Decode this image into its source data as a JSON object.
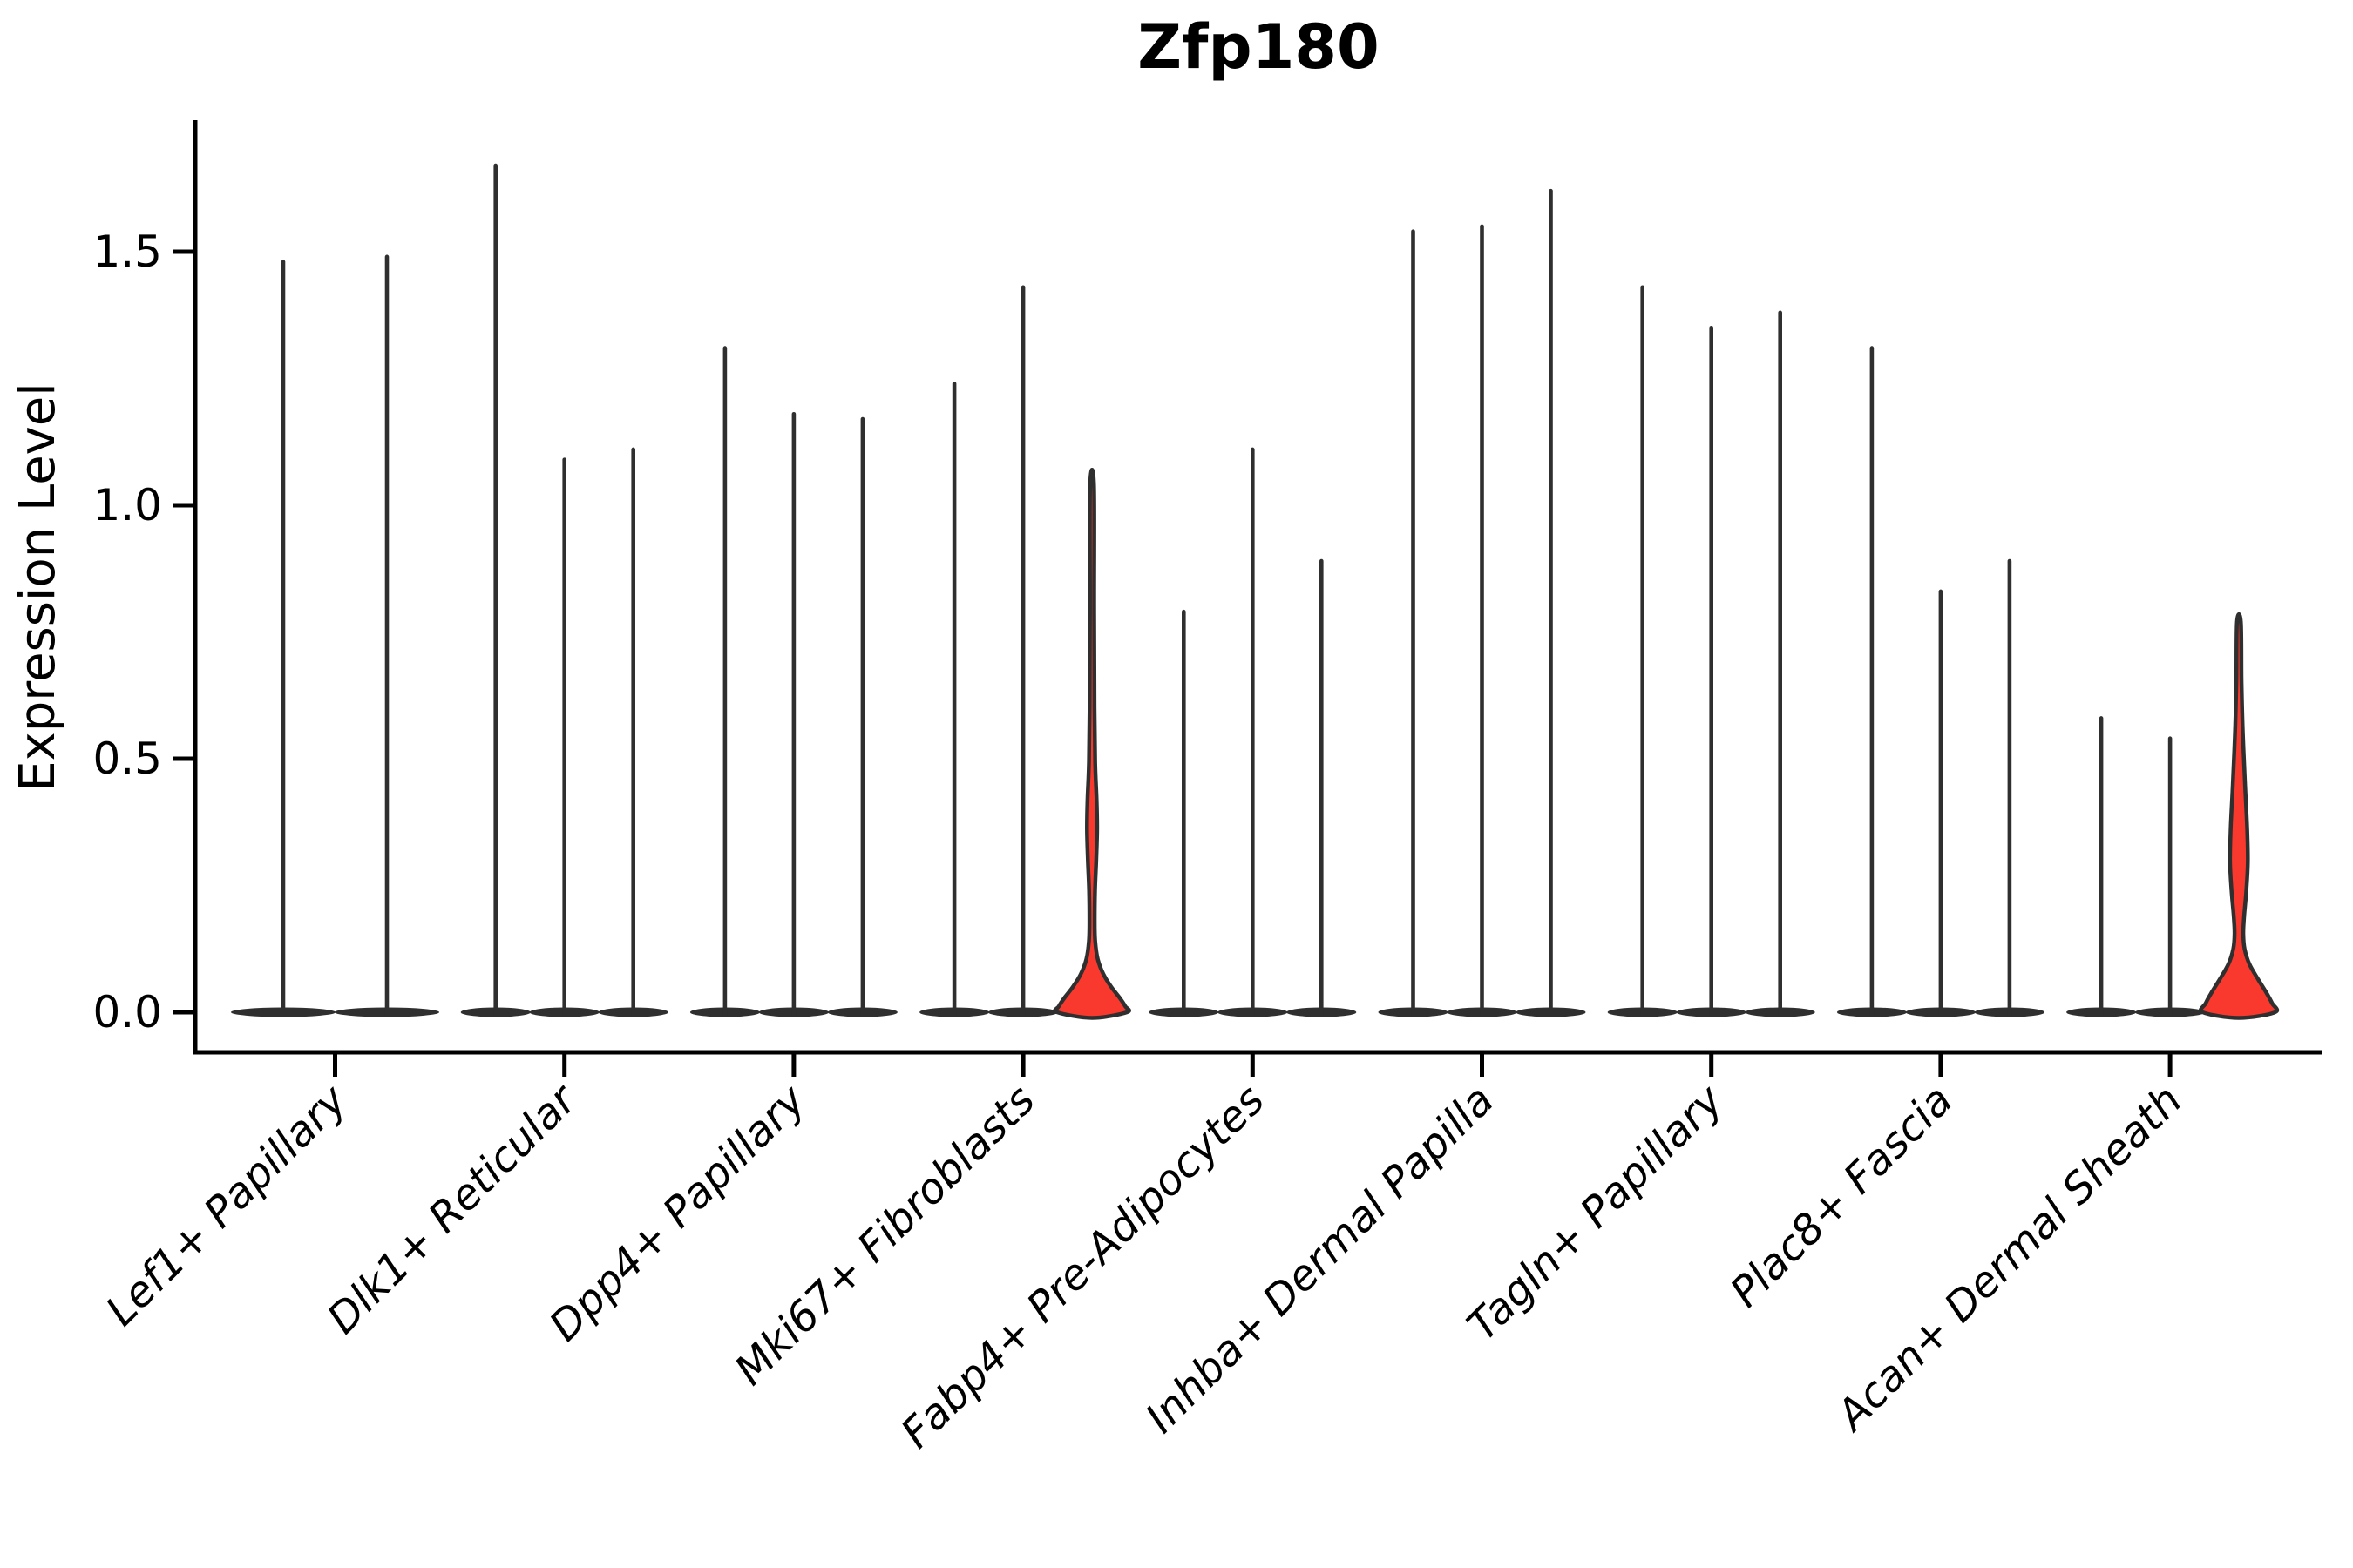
{
  "title": "Zfp180",
  "colors": {
    "line": "#2f2f2f",
    "highlight_fill": "#f9392d",
    "background": "#ffffff"
  },
  "chart_data": {
    "type": "violin",
    "title": "Zfp180",
    "xlabel": "",
    "ylabel": "Expression Level",
    "yticks": [
      0.0,
      0.5,
      1.0,
      1.5
    ],
    "ylim": [
      0,
      1.76
    ],
    "grid": false,
    "legend": "none",
    "categories": [
      "Lef1+ Papillary",
      "Dlk1+ Reticular",
      "Dpp4+ Papillary",
      "Mki67+ Fibroblasts",
      "Fabp4+ Pre-Adipocytes",
      "Inhba+ Dermal Papilla",
      "Tagln+ Papillary",
      "Plac8+ Fascia",
      "Acan+ Dermal Sheath"
    ],
    "groups": [
      {
        "label": "Lef1+ Papillary",
        "violins": [
          {
            "max": 1.48
          },
          {
            "max": 1.49
          }
        ]
      },
      {
        "label": "Dlk1+ Reticular",
        "violins": [
          {
            "max": 1.67
          },
          {
            "max": 1.09
          },
          {
            "max": 1.11
          }
        ]
      },
      {
        "label": "Dpp4+ Papillary",
        "violins": [
          {
            "max": 1.31
          },
          {
            "max": 1.18
          },
          {
            "max": 1.17
          }
        ]
      },
      {
        "label": "Mki67+ Fibroblasts",
        "violins": [
          {
            "max": 1.24
          },
          {
            "max": 1.43
          },
          {
            "max": 1.04,
            "highlighted": true,
            "profile": [
              [
                1.04,
                2.2
              ],
              [
                0.8,
                2.4
              ],
              [
                0.6,
                2.8
              ],
              [
                0.49,
                3.6
              ],
              [
                0.42,
                5.2
              ],
              [
                0.36,
                5.8
              ],
              [
                0.3,
                4.8
              ],
              [
                0.24,
                3.4
              ],
              [
                0.18,
                3.0
              ],
              [
                0.14,
                3.6
              ],
              [
                0.105,
                6.5
              ],
              [
                0.075,
                13
              ],
              [
                0.05,
                22
              ],
              [
                0.03,
                31
              ],
              [
                0.012,
                38
              ],
              [
                0.0,
                40
              ]
            ]
          }
        ]
      },
      {
        "label": "Fabp4+ Pre-Adipocytes",
        "violins": [
          {
            "max": 0.79
          },
          {
            "max": 1.11
          },
          {
            "max": 0.89
          }
        ]
      },
      {
        "label": "Inhba+ Dermal Papilla",
        "violins": [
          {
            "max": 1.54
          },
          {
            "max": 1.55
          },
          {
            "max": 1.62
          }
        ]
      },
      {
        "label": "Tagln+ Papillary",
        "violins": [
          {
            "max": 1.43
          },
          {
            "max": 1.35
          },
          {
            "max": 1.38
          }
        ]
      },
      {
        "label": "Plac8+ Fascia",
        "violins": [
          {
            "max": 1.31
          },
          {
            "max": 0.83
          },
          {
            "max": 0.89
          }
        ]
      },
      {
        "label": "Acan+ Dermal Sheath",
        "violins": [
          {
            "max": 0.58
          },
          {
            "max": 0.54
          },
          {
            "max": 0.77,
            "highlighted": true,
            "profile": [
              [
                0.77,
                2.2
              ],
              [
                0.65,
                3.0
              ],
              [
                0.55,
                4.5
              ],
              [
                0.45,
                7.0
              ],
              [
                0.36,
                9.5
              ],
              [
                0.295,
                10.2
              ],
              [
                0.24,
                8.5
              ],
              [
                0.19,
                6.0
              ],
              [
                0.155,
                5.0
              ],
              [
                0.125,
                6.5
              ],
              [
                0.095,
                12
              ],
              [
                0.065,
                22
              ],
              [
                0.04,
                31
              ],
              [
                0.018,
                38
              ],
              [
                0.0,
                41.5
              ]
            ]
          }
        ]
      }
    ]
  }
}
